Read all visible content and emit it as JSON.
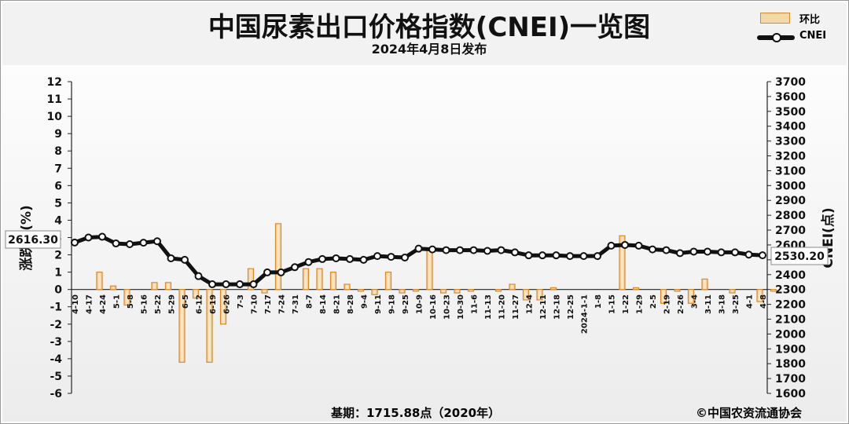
{
  "header": {
    "title": "中国尿素出口价格指数(CNEI)一览图",
    "subtitle": "2024年4月8日发布"
  },
  "legend": {
    "bar_label": "环比",
    "line_label": "CNEI"
  },
  "footer": {
    "base": "基期：1715.88点（2020年）",
    "copyright": "©中国农资流通协会"
  },
  "colors": {
    "bar_fill": "#f4d9a8",
    "bar_stroke": "#d98a2b",
    "line": "#111111"
  },
  "chart_data": {
    "type": "bar+line",
    "title": "中国尿素出口价格指数(CNEI)一览图",
    "subtitle": "2024年4月8日发布",
    "ylabel_left": "涨跌幅(%)",
    "ylabel_right": "CNEI(点)",
    "ylim_left": [
      -6,
      12
    ],
    "ylim_right": [
      1600,
      3700
    ],
    "yticks_left": [
      "12",
      "11",
      "10",
      "9",
      "8",
      "7",
      "6",
      "5",
      "4",
      "3",
      "2",
      "1",
      "0",
      "-1",
      "-2",
      "-3",
      "-4",
      "-5",
      "-6"
    ],
    "yticks_right": [
      "3700",
      "3600",
      "3500",
      "3400",
      "3300",
      "3200",
      "3100",
      "3000",
      "2900",
      "2800",
      "2700",
      "2600",
      "2500",
      "2400",
      "2300",
      "2200",
      "2100",
      "2000",
      "1900",
      "1800",
      "1700",
      "1600"
    ],
    "categories": [
      "4-10",
      "4-17",
      "4-24",
      "5-1",
      "5-8",
      "5-16",
      "5-22",
      "5-29",
      "6-5",
      "6-12",
      "6-19",
      "6-26",
      "7-3",
      "7-10",
      "7-17",
      "7-24",
      "7-31",
      "8-7",
      "8-14",
      "8-21",
      "8-28",
      "9-4",
      "9-11",
      "9-18",
      "9-25",
      "10-9",
      "10-16",
      "10-23",
      "10-30",
      "11-6",
      "11-13",
      "11-20",
      "11-27",
      "12-4",
      "12-11",
      "12-18",
      "12-25",
      "2024-1-1",
      "1-8",
      "1-15",
      "1-22",
      "1-29",
      "2-5",
      "2-19",
      "2-26",
      "3-4",
      "3-11",
      "3-18",
      "3-25",
      "4-1",
      "4-8"
    ],
    "series": [
      {
        "name": "环比",
        "type": "bar",
        "values": [
          0,
          1.0,
          0.2,
          -0.9,
          0,
          0.4,
          0.4,
          -4.2,
          -0.5,
          -4.2,
          -2.0,
          0,
          1.2,
          -0.2,
          3.8,
          0,
          1.2,
          1.2,
          1.0,
          0.3,
          -0.1,
          -0.3,
          1.0,
          -0.2,
          -0.1,
          2.4,
          -0.2,
          -0.2,
          -0.1,
          0,
          -0.1,
          0.3,
          -0.6,
          -0.6,
          0.1,
          0,
          0,
          0,
          0,
          3.1,
          0.1,
          0,
          -0.8,
          -0.1,
          -0.8,
          0.6,
          0,
          -0.2,
          0,
          -0.7,
          -0.1
        ]
      },
      {
        "name": "CNEI",
        "type": "line",
        "values": [
          2616.3,
          2650,
          2655,
          2610,
          2605,
          2615,
          2625,
          2510,
          2500,
          2390,
          2335,
          2335,
          2335,
          2335,
          2415,
          2415,
          2450,
          2485,
          2505,
          2510,
          2505,
          2500,
          2525,
          2520,
          2515,
          2575,
          2570,
          2565,
          2565,
          2565,
          2560,
          2565,
          2550,
          2530,
          2530,
          2530,
          2525,
          2525,
          2525,
          2595,
          2600,
          2595,
          2570,
          2565,
          2545,
          2555,
          2555,
          2550,
          2550,
          2535,
          2530.2
        ]
      }
    ],
    "annotations": [
      "2616.30",
      "2530.20"
    ],
    "grid": false
  }
}
